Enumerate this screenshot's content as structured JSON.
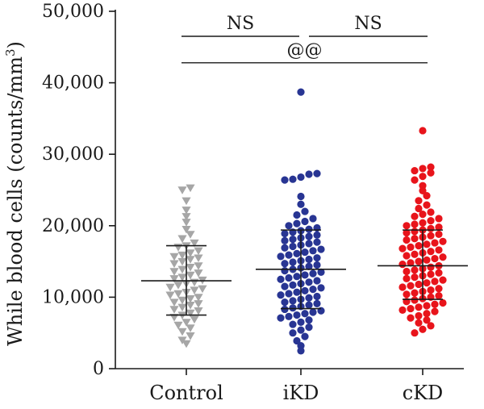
{
  "chart_data": {
    "type": "scatter",
    "ylabel_main": "While blood cells (counts/mm",
    "ylabel_sup": "3",
    "ylabel_close": ")",
    "ylim": [
      0,
      50000
    ],
    "yticks": [
      0,
      10000,
      20000,
      30000,
      40000,
      50000
    ],
    "ytick_labels": [
      "0",
      "10,000",
      "20,000",
      "30,000",
      "40,000",
      "50,000"
    ],
    "categories": [
      "Control",
      "iKD",
      "cKD"
    ],
    "grid": false,
    "legend": "none",
    "groups": [
      {
        "category": "Control",
        "marker": "triangle-down",
        "color": "#a6a6a6",
        "mean": 12300,
        "sd_upper": 17200,
        "sd_lower": 7500,
        "values": [
          25300,
          25000,
          23500,
          22200,
          21300,
          20500,
          19500,
          18800,
          18200,
          17600,
          17200,
          17000,
          16500,
          16200,
          15900,
          15700,
          15500,
          15300,
          15000,
          14700,
          14400,
          14200,
          13900,
          13600,
          13400,
          13100,
          12800,
          12600,
          12400,
          12100,
          11900,
          11700,
          11400,
          11200,
          11000,
          10700,
          10500,
          10300,
          10000,
          9800,
          9600,
          9300,
          9100,
          8900,
          8600,
          8300,
          8100,
          7800,
          7500,
          7200,
          6900,
          6500,
          6100,
          5700,
          5200,
          4600,
          4000,
          3500
        ]
      },
      {
        "category": "iKD",
        "marker": "circle",
        "color": "#283593",
        "mean": 13900,
        "sd_upper": 19400,
        "sd_lower": 8400,
        "values": [
          38700,
          27300,
          27200,
          26800,
          26500,
          26400,
          24100,
          23000,
          22000,
          21500,
          21000,
          20600,
          20300,
          20000,
          19700,
          19500,
          19300,
          19100,
          18900,
          18700,
          18500,
          18300,
          18100,
          17900,
          17700,
          17500,
          17300,
          17100,
          16900,
          16700,
          16500,
          16300,
          16100,
          15900,
          15700,
          15500,
          15300,
          15100,
          14900,
          14700,
          14500,
          14300,
          14100,
          13900,
          13700,
          13500,
          13300,
          13100,
          12900,
          12700,
          12500,
          12300,
          12100,
          11900,
          11700,
          11500,
          11300,
          11100,
          10900,
          10700,
          10500,
          10300,
          10100,
          9900,
          9700,
          9500,
          9300,
          9100,
          8900,
          8700,
          8500,
          8300,
          8100,
          7900,
          7700,
          7500,
          7300,
          7100,
          6800,
          6500,
          6200,
          5800,
          5400,
          5000,
          4500,
          3900,
          3200,
          2500
        ]
      },
      {
        "category": "cKD",
        "marker": "circle",
        "color": "#e8141b",
        "mean": 14400,
        "sd_upper": 19400,
        "sd_lower": 9700,
        "values": [
          33300,
          28200,
          28000,
          27700,
          27400,
          26900,
          26400,
          25600,
          24900,
          24200,
          23500,
          22900,
          22400,
          21900,
          21600,
          21300,
          21000,
          20700,
          20400,
          20200,
          20000,
          19800,
          19600,
          19400,
          19200,
          19000,
          18800,
          18600,
          18400,
          18200,
          18000,
          17800,
          17600,
          17400,
          17200,
          17000,
          16800,
          16600,
          16400,
          16200,
          16000,
          15800,
          15600,
          15400,
          15200,
          15000,
          14800,
          14600,
          14400,
          14200,
          14000,
          13800,
          13600,
          13400,
          13200,
          13000,
          12800,
          12600,
          12400,
          12200,
          12000,
          11800,
          11600,
          11400,
          11200,
          11000,
          10800,
          10600,
          10400,
          10200,
          10000,
          9800,
          9600,
          9400,
          9200,
          9000,
          8800,
          8600,
          8400,
          8200,
          8000,
          7700,
          7400,
          7100,
          6800,
          6400,
          6000,
          5500,
          5000
        ]
      }
    ],
    "annotations": [
      {
        "text": "NS",
        "from": "Control",
        "to": "iKD",
        "y": 46500
      },
      {
        "text": "NS",
        "from": "iKD",
        "to": "cKD",
        "y": 46500
      },
      {
        "text": "@@",
        "from": "Control",
        "to": "cKD",
        "y": 42800
      }
    ]
  }
}
